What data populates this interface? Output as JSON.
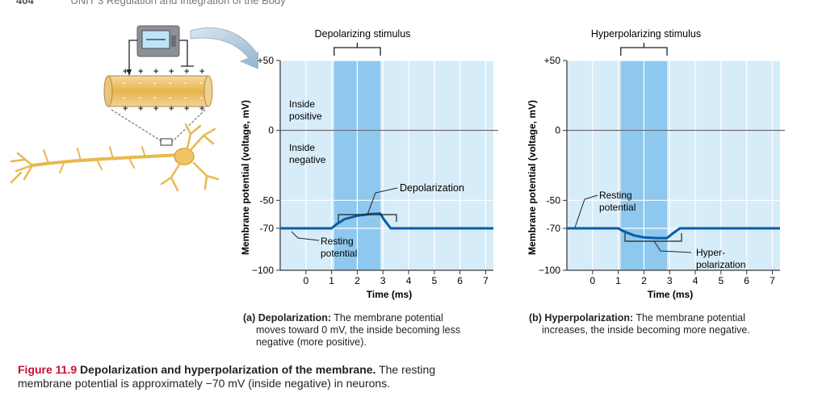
{
  "header": {
    "page_number": "404",
    "unit_text": "UNIT 3 Regulation and Integration of the Body"
  },
  "colors": {
    "plot_bg": "#d6ecf8",
    "stim_bg": "#8ec8ef",
    "trace": "#0a5ca8",
    "caption_red": "#c8102e"
  },
  "illustration": {
    "plus": "+",
    "minus": "-"
  },
  "chart_data": [
    {
      "type": "line",
      "id": "a",
      "title": "Depolarizing stimulus",
      "xlabel": "Time (ms)",
      "ylabel": "Membrane potential (voltage, mV)",
      "x_ticks": [
        "0",
        "1",
        "2",
        "3",
        "4",
        "5",
        "6",
        "7"
      ],
      "y_ticks": [
        {
          "label": "+50",
          "value": 50
        },
        {
          "label": "0",
          "value": 0
        },
        {
          "label": "-50",
          "value": -50
        },
        {
          "label": "-70",
          "value": -70
        },
        {
          "label": "−100",
          "value": -100
        }
      ],
      "xlim": [
        -1,
        7.3
      ],
      "ylim": [
        -100,
        50
      ],
      "stimulus_range": [
        1.1,
        2.9
      ],
      "series": [
        {
          "name": "Membrane potential",
          "x": [
            -1.1,
            0,
            1,
            1.2,
            1.5,
            2,
            2.5,
            2.9,
            3.05,
            3.3,
            4,
            5,
            6,
            7.3
          ],
          "y": [
            -70,
            -70,
            -70,
            -67,
            -63.5,
            -61,
            -59.8,
            -59.5,
            -64,
            -70,
            -70,
            -70,
            -70,
            -70
          ]
        }
      ],
      "annotations": {
        "inside_positive_1": "Inside",
        "inside_positive_2": "positive",
        "inside_negative_1": "Inside",
        "inside_negative_2": "negative",
        "effect_label": "Depolarization",
        "resting_1": "Resting",
        "resting_2": "potential"
      },
      "caption_bold": "(a) Depolarization:",
      "caption_lines": [
        "The membrane potential",
        "moves toward 0 mV, the inside becoming less",
        "negative (more positive)."
      ]
    },
    {
      "type": "line",
      "id": "b",
      "title": "Hyperpolarizing stimulus",
      "xlabel": "Time (ms)",
      "ylabel": "Membrane potential (voltage, mV)",
      "x_ticks": [
        "0",
        "1",
        "2",
        "3",
        "4",
        "5",
        "6",
        "7"
      ],
      "y_ticks": [
        {
          "label": "+50",
          "value": 50
        },
        {
          "label": "0",
          "value": 0
        },
        {
          "label": "-50",
          "value": -50
        },
        {
          "label": "-70",
          "value": -70
        },
        {
          "label": "−100",
          "value": -100
        }
      ],
      "xlim": [
        -1,
        7.3
      ],
      "ylim": [
        -100,
        50
      ],
      "stimulus_range": [
        1.1,
        2.9
      ],
      "series": [
        {
          "name": "Membrane potential",
          "x": [
            -1.1,
            0,
            1,
            1.2,
            1.6,
            2,
            2.5,
            2.9,
            3.1,
            3.4,
            4,
            5,
            6,
            7.3
          ],
          "y": [
            -70,
            -70,
            -70,
            -72,
            -75,
            -76.5,
            -77,
            -77,
            -74,
            -70,
            -70,
            -70,
            -70,
            -70
          ]
        }
      ],
      "annotations": {
        "resting_1": "Resting",
        "resting_2": "potential",
        "effect_1": "Hyper-",
        "effect_2": "polarization"
      },
      "caption_bold": "(b) Hyperpolarization:",
      "caption_lines": [
        "The membrane potential",
        "increases, the inside becoming more negative."
      ]
    }
  ],
  "figure_caption": {
    "label": "Figure 11.9",
    "title": "Depolarization and hyperpolarization of the membrane.",
    "text_1": "The resting",
    "text_2": "membrane potential is approximately −70 mV (inside negative) in neurons."
  }
}
